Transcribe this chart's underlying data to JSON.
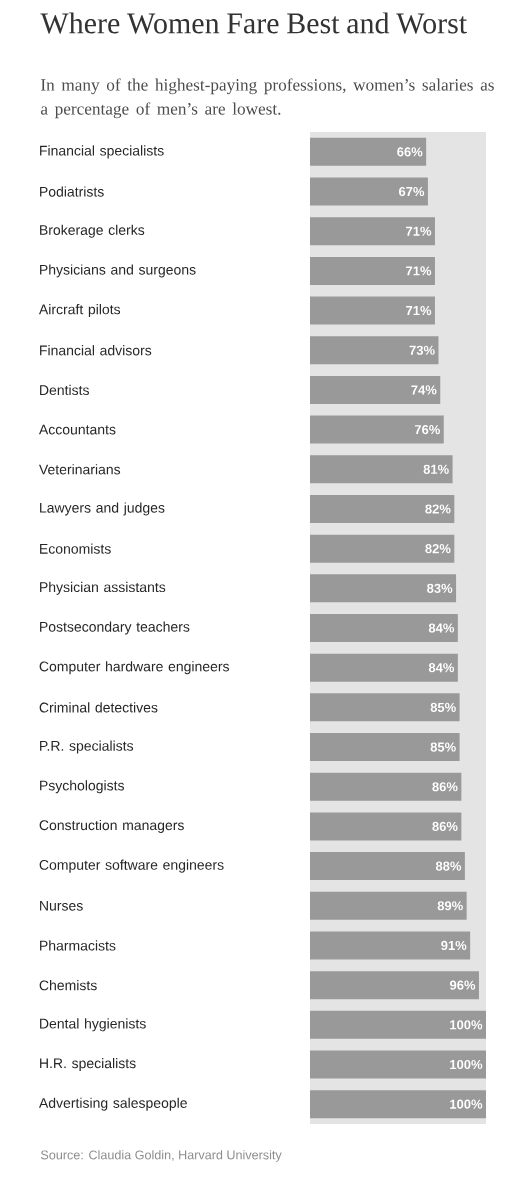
{
  "chart_data": {
    "type": "bar",
    "orientation": "horizontal",
    "title": "Where Women Fare Best and Worst",
    "subtitle": "In many of the highest-paying professions, women’s salaries as a percentage of men’s are lowest.",
    "categories": [
      "Financial specialists",
      "Podiatrists",
      "Brokerage clerks",
      "Physicians and surgeons",
      "Aircraft pilots",
      "Financial advisors",
      "Dentists",
      "Accountants",
      "Veterinarians",
      "Lawyers and judges",
      "Economists",
      "Physician assistants",
      "Postsecondary teachers",
      "Computer hardware engineers",
      "Criminal detectives",
      "P.R. specialists",
      "Psychologists",
      "Construction managers",
      "Computer software engineers",
      "Nurses",
      "Pharmacists",
      "Chemists",
      "Dental hygienists",
      "H.R. specialists",
      "Advertising salespeople"
    ],
    "values": [
      66,
      67,
      71,
      71,
      71,
      73,
      74,
      76,
      81,
      82,
      82,
      83,
      84,
      84,
      85,
      85,
      86,
      86,
      88,
      89,
      91,
      96,
      100,
      100,
      100
    ],
    "value_labels": [
      "66%",
      "67%",
      "71%",
      "71%",
      "71%",
      "73%",
      "74%",
      "76%",
      "81%",
      "82%",
      "82%",
      "83%",
      "84%",
      "84%",
      "85%",
      "85%",
      "86%",
      "86%",
      "88%",
      "89%",
      "91%",
      "96%",
      "100%",
      "100%",
      "100%"
    ],
    "color": "#999999",
    "xlim": [
      0,
      100
    ],
    "tick_labels": "y",
    "annotations": [
      "Source: Claudia Goldin, Harvard University"
    ]
  }
}
